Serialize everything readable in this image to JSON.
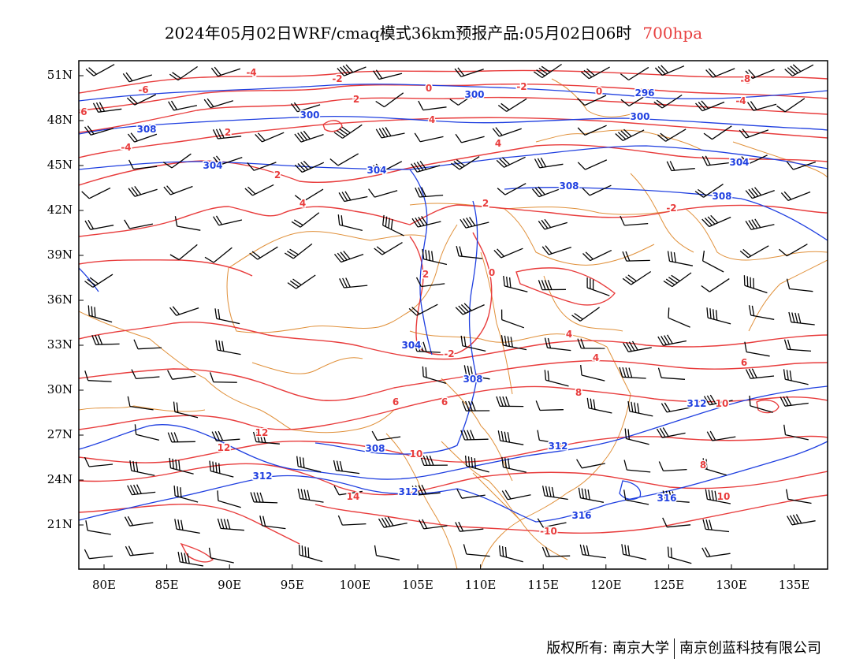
{
  "title": {
    "main": "2024年05月02日WRF/cmaq模式36km预报产品:05月02日06时",
    "level": "700hpa",
    "level_color": "#e84040"
  },
  "axes": {
    "lat_labels": [
      "51N",
      "48N",
      "45N",
      "42N",
      "39N",
      "36N",
      "33N",
      "30N",
      "27N",
      "24N",
      "21N"
    ],
    "lon_labels": [
      "80E",
      "85E",
      "90E",
      "95E",
      "100E",
      "105E",
      "110E",
      "115E",
      "120E",
      "125E",
      "130E",
      "135E"
    ]
  },
  "colors": {
    "height_contours": "#1f3fe0",
    "temperature_contours": "#e83c3c",
    "boundaries": "#e0903a",
    "wind_barbs": "#000000"
  },
  "height_contour_labels": [
    "296",
    "300",
    "300",
    "300",
    "304",
    "304",
    "304",
    "304",
    "308",
    "308",
    "308",
    "308",
    "308",
    "312",
    "312",
    "312",
    "312",
    "316",
    "316"
  ],
  "temperature_contour_labels": [
    "-6",
    "-6",
    "-6",
    "-4",
    "-4",
    "-4",
    "-2",
    "-2",
    "-2",
    "-2",
    "0",
    "0",
    "0",
    "2",
    "2",
    "2",
    "2",
    "2",
    "4",
    "4",
    "4",
    "4",
    "4",
    "6",
    "6",
    "6",
    "8",
    "8",
    "8",
    "10",
    "10",
    "10",
    "-10",
    "12",
    "12",
    "14"
  ],
  "footer": {
    "left": "版权所有: 南京大学",
    "right": "南京创蓝科技有限公司"
  }
}
